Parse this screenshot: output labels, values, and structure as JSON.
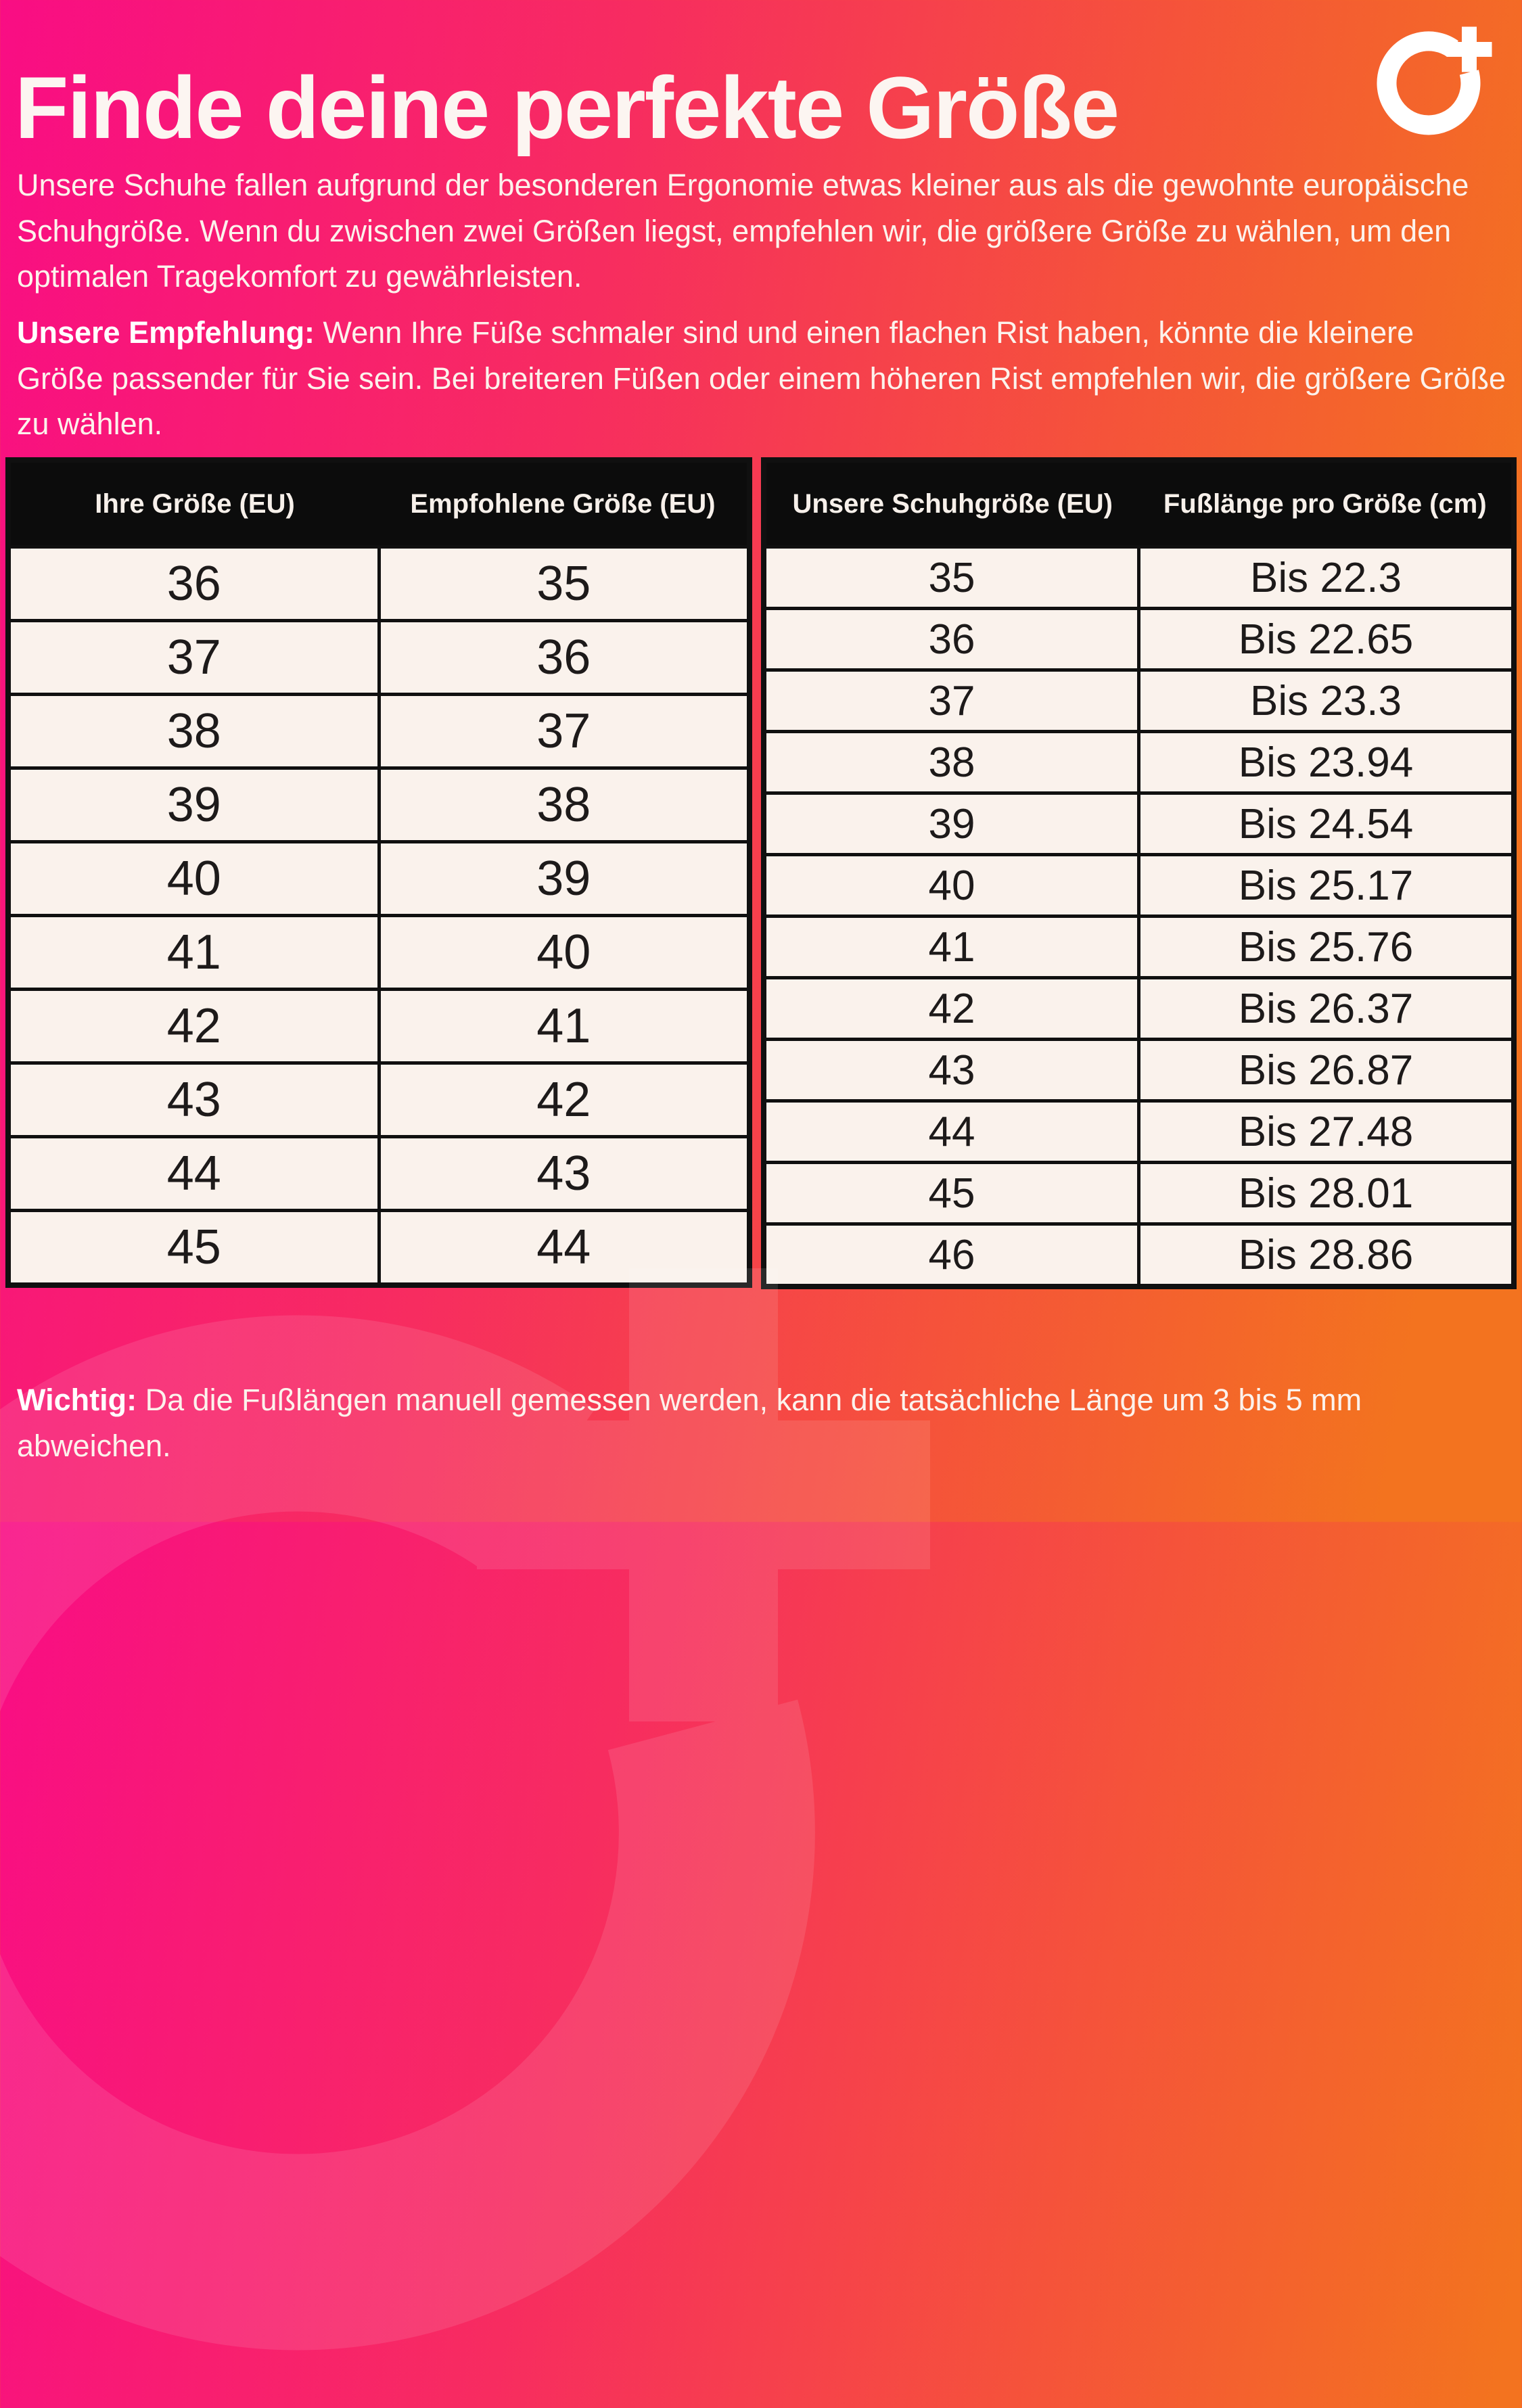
{
  "page": {
    "title": "Finde deine perfekte Größe",
    "intro": "Unsere Schuhe fallen aufgrund der besonderen Ergonomie etwas kleiner aus als die gewohnte europäische Schuhgröße. Wenn du zwischen zwei Größen liegst, empfehlen wir, die größere Größe zu wählen, um den optimalen Tragekomfort zu gewährleisten.",
    "recommendation_label": "Unsere Empfehlung:",
    "recommendation_text": " Wenn Ihre Füße schmaler sind und einen flachen Rist haben, könnte die kleinere Größe passender für Sie sein. Bei breiteren Füßen oder einem höheren Rist empfehlen wir, die größere Größe zu wählen.",
    "footer_label": "Wichtig:",
    "footer_text": " Da die Fußlängen manuell gemessen werden, kann die tatsächliche Länge um 3 bis 5 mm abweichen."
  },
  "size_table": {
    "headers": [
      "Ihre Größe (EU)",
      "Empfohlene Größe (EU)"
    ],
    "rows": [
      [
        "36",
        "35"
      ],
      [
        "37",
        "36"
      ],
      [
        "38",
        "37"
      ],
      [
        "39",
        "38"
      ],
      [
        "40",
        "39"
      ],
      [
        "41",
        "40"
      ],
      [
        "42",
        "41"
      ],
      [
        "43",
        "42"
      ],
      [
        "44",
        "43"
      ],
      [
        "45",
        "44"
      ]
    ]
  },
  "length_table": {
    "headers": [
      "Unsere Schuhgröße (EU)",
      "Fußlänge pro Größe (cm)"
    ],
    "rows": [
      [
        "35",
        "Bis 22.3"
      ],
      [
        "36",
        "Bis 22.65"
      ],
      [
        "37",
        "Bis 23.3"
      ],
      [
        "38",
        "Bis 23.94"
      ],
      [
        "39",
        "Bis 24.54"
      ],
      [
        "40",
        "Bis 25.17"
      ],
      [
        "41",
        "Bis 25.76"
      ],
      [
        "42",
        "Bis 26.37"
      ],
      [
        "43",
        "Bis 26.87"
      ],
      [
        "44",
        "Bis 27.48"
      ],
      [
        "45",
        "Bis 28.01"
      ],
      [
        "46",
        "Bis 28.86"
      ]
    ]
  },
  "icons": {
    "brand_logo": "circle-plus-logo",
    "watermark": "circle-plus-logo-watermark"
  },
  "colors": {
    "gradient_start": "#f90d84",
    "gradient_mid": "#f5533a",
    "gradient_end": "#f3731f",
    "table_header_bg": "#0c0c0c",
    "table_header_text": "#f7f0ea",
    "cell_bg": "#faf2ec",
    "cell_text": "#1d1a1a",
    "border": "#101010",
    "body_text": "#fcf2ec"
  }
}
